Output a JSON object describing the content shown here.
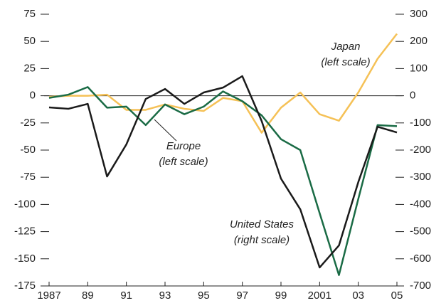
{
  "chart_data": {
    "type": "line",
    "x": [
      1987,
      1988,
      1989,
      1990,
      1991,
      1992,
      1993,
      1994,
      1995,
      1996,
      1997,
      1998,
      1999,
      2000,
      2001,
      2002,
      2003,
      2004,
      2005
    ],
    "series": [
      {
        "name": "Japan",
        "color": "#f5c156",
        "values": [
          -1,
          0,
          0,
          1,
          -13,
          -13,
          -8,
          -12,
          -14,
          -2,
          -5,
          -34,
          -11,
          3,
          -17,
          -23,
          3,
          34,
          57
        ]
      },
      {
        "name": "Europe",
        "color": "#1a6b45",
        "values": [
          -2,
          1,
          8,
          -11,
          -10,
          -27,
          -8,
          -17,
          -10,
          4,
          -5,
          -18,
          -40,
          -50,
          -108,
          -165,
          -95,
          -27,
          -28
        ]
      },
      {
        "name": "United States",
        "color": "#1a1a1a",
        "axis": "y2",
        "values": [
          -43,
          -48,
          -30,
          -297,
          -179,
          -12,
          25,
          -30,
          12,
          30,
          72,
          -93,
          -305,
          -418,
          -632,
          -551,
          -318,
          -114,
          -135
        ]
      }
    ],
    "annotations": [
      [
        "Japan",
        "(left scale)"
      ],
      [
        "Europe",
        "(left scale)"
      ],
      [
        "United States",
        "(right scale)"
      ]
    ],
    "xlim": [
      1987,
      2005
    ],
    "xticks": [
      1987,
      {
        "value": 1989,
        "label": "89"
      },
      {
        "value": 1991,
        "label": "91"
      },
      {
        "value": 1993,
        "label": "93"
      },
      {
        "value": 1995,
        "label": "95"
      },
      {
        "value": 1997,
        "label": "97"
      },
      {
        "value": 1999,
        "label": "99"
      },
      2001,
      {
        "value": 2003,
        "label": "03"
      },
      {
        "value": 2005,
        "label": "05"
      }
    ],
    "ylim": [
      -175,
      75
    ],
    "yticks": [
      75,
      50,
      25,
      0,
      -25,
      -50,
      -75,
      -100,
      -125,
      -150,
      -175
    ],
    "y2lim": [
      -700,
      300
    ],
    "y2ticks": [
      300,
      200,
      100,
      0,
      -100,
      -200,
      -300,
      -400,
      -500,
      -600,
      -700
    ]
  }
}
